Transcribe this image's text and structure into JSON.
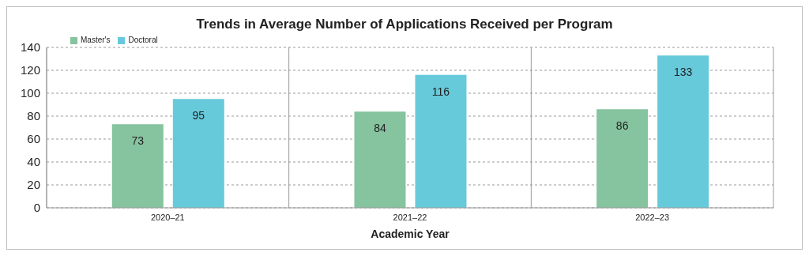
{
  "chart_data": {
    "type": "bar",
    "title": "Trends in Average Number of Applications Received per Program",
    "xlabel": "Academic Year",
    "categories": [
      "2020–21",
      "2021–22",
      "2022–23"
    ],
    "series": [
      {
        "name": "Master's",
        "color": "#86c39f",
        "values": [
          73,
          84,
          86
        ]
      },
      {
        "name": "Doctoral",
        "color": "#67cadb",
        "values": [
          95,
          116,
          133
        ]
      }
    ],
    "ylim": [
      0,
      140
    ],
    "yticks": [
      0,
      20,
      40,
      60,
      80,
      100,
      120,
      140
    ],
    "grid": true,
    "legend": "top left",
    "data_labels": true
  }
}
